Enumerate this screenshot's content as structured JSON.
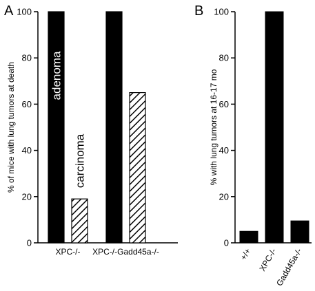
{
  "colors": {
    "ink": "#000000",
    "paper": "#ffffff"
  },
  "chart_data": [
    {
      "panel": "A",
      "type": "bar",
      "ylabel": "% of mice with lung tumors at death",
      "ylim": [
        0,
        100
      ],
      "yticks": [
        0,
        20,
        40,
        60,
        80,
        100
      ],
      "categories": [
        "XPC-/-",
        "XPC-/-Gadd45a-/-"
      ],
      "series": [
        {
          "name": "adenoma",
          "fill": "solid",
          "values": [
            100,
            100
          ]
        },
        {
          "name": "carcinoma",
          "fill": "hatched",
          "values": [
            19,
            65
          ]
        }
      ],
      "grid": false
    },
    {
      "panel": "B",
      "type": "bar",
      "ylabel": "% with lung tumors at 16-17 mo",
      "ylim": [
        0,
        100
      ],
      "yticks": [
        0,
        20,
        40,
        60,
        80,
        100
      ],
      "categories": [
        "+/+",
        "XPC-/-",
        "Gadd45a-/-"
      ],
      "values": [
        5,
        100,
        9.5
      ],
      "grid": false
    }
  ]
}
